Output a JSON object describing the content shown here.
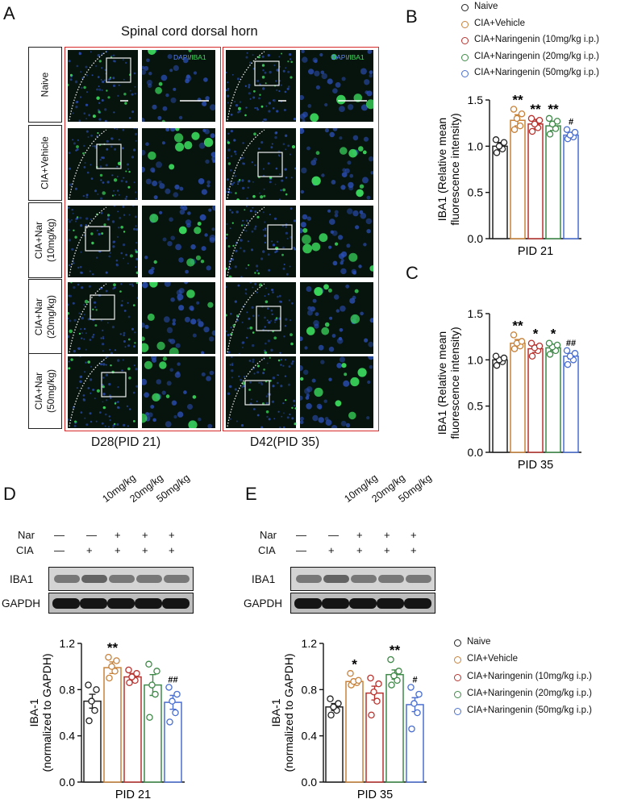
{
  "colors": {
    "naive": "#222222",
    "vehicle": "#c8823a",
    "nar10": "#b8332f",
    "nar20": "#3f8a48",
    "nar50": "#4a6fd0",
    "red_frame": "#d62a2a"
  },
  "panelA": {
    "letter": "A",
    "title": "Spinal cord dorsal horn",
    "stain_label_dapi": "DAPI",
    "stain_label_sep": "/",
    "stain_label_iba1": "IBA1",
    "rows": [
      "Naive",
      "CIA+Vehicle",
      "CIA+Nar\n(10mg/kg)",
      "CIA+Nar\n(20mg/kg)",
      "CIA+Nar\n(50mg/kg)"
    ],
    "column_labels": [
      "D28(PID 21)",
      "D42(PID 35)"
    ]
  },
  "legend_top": [
    "Naive",
    "CIA+Vehicle",
    "CIA+Naringenin (10mg/kg i.p.)",
    "CIA+Naringenin (20mg/kg i.p.)",
    "CIA+Naringenin (50mg/kg i.p.)"
  ],
  "legend_bottom": [
    "Naive",
    "CIA+Vehicle",
    "CIA+Naringenin (10mg/kg i.p.)",
    "CIA+Naringenin (20mg/kg i.p.)",
    "CIA+Naringenin (50mg/kg i.p.)"
  ],
  "blots": {
    "D": {
      "letter": "D",
      "doses": [
        "10mg/kg",
        "20mg/kg",
        "50mg/kg"
      ],
      "nar_label": "Nar",
      "cia_label": "CIA",
      "nar_marks": [
        "—",
        "—",
        "+",
        "+",
        "+"
      ],
      "cia_marks": [
        "—",
        "+",
        "+",
        "+",
        "+"
      ],
      "band_labels": [
        "IBA1",
        "GAPDH"
      ]
    },
    "E": {
      "letter": "E",
      "doses": [
        "10mg/kg",
        "20mg/kg",
        "50mg/kg"
      ],
      "nar_label": "Nar",
      "cia_label": "CIA",
      "nar_marks": [
        "—",
        "—",
        "+",
        "+",
        "+"
      ],
      "cia_marks": [
        "—",
        "+",
        "+",
        "+",
        "+"
      ],
      "band_labels": [
        "IBA1",
        "GAPDH"
      ]
    }
  },
  "chart_data": [
    {
      "panel": "B",
      "type": "bar",
      "title": "",
      "xlabel": "PID 21",
      "ylabel": "IBA1 (Relative mean\nfluorescence intensity)",
      "ylim": [
        0,
        1.5
      ],
      "yticks": [
        "0.0",
        "0.5",
        "1.0",
        "1.5"
      ],
      "categories": [
        "Naive",
        "CIA+Vehicle",
        "CIA+Naringenin (10mg/kg i.p.)",
        "CIA+Naringenin (20mg/kg i.p.)",
        "CIA+Naringenin (50mg/kg i.p.)"
      ],
      "values": [
        1.0,
        1.28,
        1.24,
        1.22,
        1.12
      ],
      "errors": [
        0.04,
        0.06,
        0.05,
        0.05,
        0.03
      ],
      "points": [
        [
          0.93,
          0.97,
          1.0,
          1.04,
          1.07
        ],
        [
          1.18,
          1.22,
          1.3,
          1.35,
          1.4
        ],
        [
          1.16,
          1.2,
          1.24,
          1.28,
          1.3
        ],
        [
          1.13,
          1.19,
          1.24,
          1.27,
          1.3
        ],
        [
          1.08,
          1.1,
          1.12,
          1.15,
          1.18
        ]
      ],
      "sig": [
        "",
        "**",
        "**",
        "**",
        "#"
      ]
    },
    {
      "panel": "C",
      "type": "bar",
      "title": "",
      "xlabel": "PID 35",
      "ylabel": "IBA1 (Relative mean\nfluorescence intensity)",
      "ylim": [
        0,
        1.5
      ],
      "yticks": [
        "0.0",
        "0.5",
        "1.0",
        "1.5"
      ],
      "categories": [
        "Naive",
        "CIA+Vehicle",
        "CIA+Naringenin (10mg/kg i.p.)",
        "CIA+Naringenin (20mg/kg i.p.)",
        "CIA+Naringenin (50mg/kg i.p.)"
      ],
      "values": [
        1.0,
        1.18,
        1.12,
        1.13,
        1.04
      ],
      "errors": [
        0.02,
        0.04,
        0.04,
        0.03,
        0.03
      ],
      "points": [
        [
          0.94,
          0.98,
          1.0,
          1.02,
          1.04
        ],
        [
          1.12,
          1.15,
          1.18,
          1.2,
          1.27
        ],
        [
          1.04,
          1.1,
          1.13,
          1.15,
          1.18
        ],
        [
          1.06,
          1.1,
          1.14,
          1.16,
          1.18
        ],
        [
          0.95,
          1.0,
          1.04,
          1.07,
          1.1
        ]
      ],
      "sig": [
        "",
        "**",
        "*",
        "*",
        "##"
      ]
    },
    {
      "panel": "D",
      "type": "bar",
      "title": "",
      "xlabel": "PID 21",
      "ylabel": "IBA-1\n(normalized to GAPDH)",
      "ylim": [
        0,
        1.2
      ],
      "yticks": [
        "0.0",
        "0.4",
        "0.8",
        "1.2"
      ],
      "categories": [
        "Naive",
        "CIA+Vehicle",
        "CIA+Naringenin (10mg/kg i.p.)",
        "CIA+Naringenin (20mg/kg i.p.)",
        "CIA+Naringenin (50mg/kg i.p.)"
      ],
      "values": [
        0.7,
        0.99,
        0.91,
        0.84,
        0.69
      ],
      "errors": [
        0.06,
        0.05,
        0.03,
        0.09,
        0.06
      ],
      "points": [
        [
          0.53,
          0.62,
          0.7,
          0.8,
          0.84
        ],
        [
          0.9,
          0.96,
          1.0,
          1.05,
          1.08
        ],
        [
          0.86,
          0.88,
          0.91,
          0.94,
          0.97
        ],
        [
          0.56,
          0.76,
          0.84,
          0.96,
          1.02
        ],
        [
          0.52,
          0.6,
          0.7,
          0.76,
          0.82
        ]
      ],
      "sig": [
        "",
        "**",
        "",
        "",
        "##"
      ]
    },
    {
      "panel": "E",
      "type": "bar",
      "title": "",
      "xlabel": "PID 35",
      "ylabel": "IBA-1\n(normalized to GAPDH)",
      "ylim": [
        0,
        1.2
      ],
      "yticks": [
        "0.0",
        "0.4",
        "0.8",
        "1.2"
      ],
      "categories": [
        "Naive",
        "CIA+Vehicle",
        "CIA+Naringenin (10mg/kg i.p.)",
        "CIA+Naringenin (20mg/kg i.p.)",
        "CIA+Naringenin (50mg/kg i.p.)"
      ],
      "values": [
        0.65,
        0.87,
        0.77,
        0.93,
        0.67
      ],
      "errors": [
        0.03,
        0.02,
        0.06,
        0.04,
        0.06
      ],
      "points": [
        [
          0.58,
          0.62,
          0.65,
          0.68,
          0.72
        ],
        [
          0.84,
          0.86,
          0.87,
          0.88,
          0.94
        ],
        [
          0.58,
          0.7,
          0.78,
          0.85,
          0.9
        ],
        [
          0.84,
          0.88,
          0.92,
          0.96,
          1.06
        ],
        [
          0.46,
          0.6,
          0.68,
          0.76,
          0.82
        ]
      ],
      "sig": [
        "",
        "*",
        "",
        "**",
        "#"
      ]
    }
  ]
}
